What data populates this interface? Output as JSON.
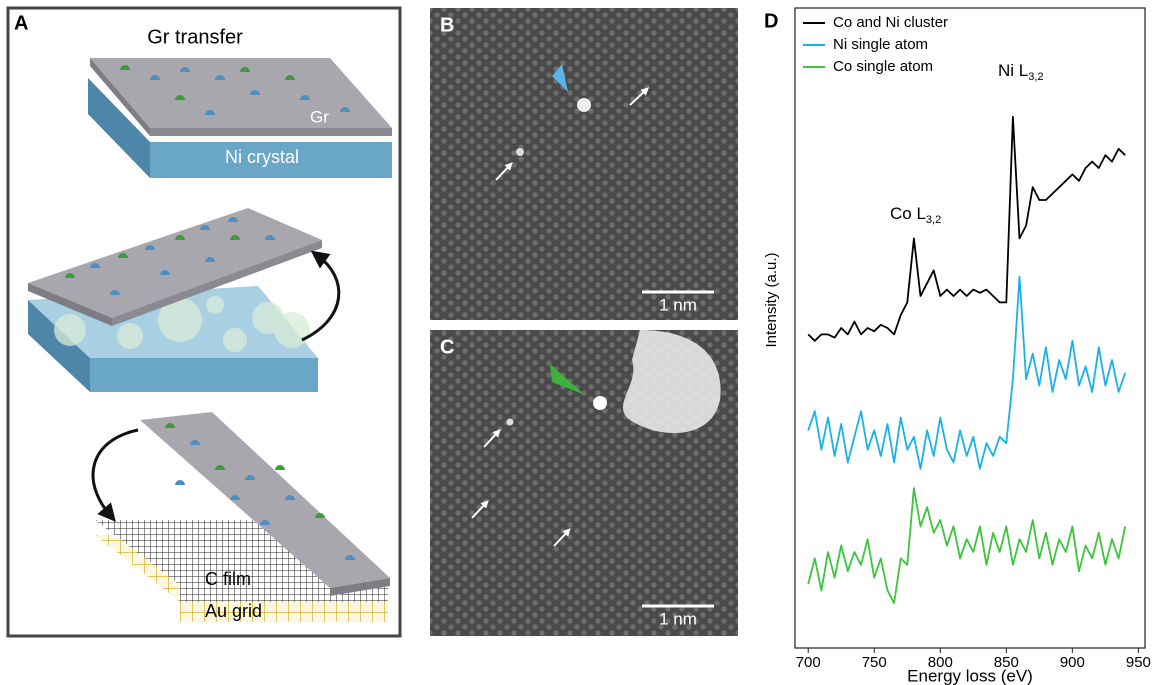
{
  "panels": {
    "A": {
      "label": "A",
      "title": "Gr transfer",
      "labels": [
        "Gr",
        "Ni crystal",
        "C film",
        "Au grid"
      ]
    },
    "B": {
      "label": "B",
      "scale_bar": "1 nm"
    },
    "C": {
      "label": "C",
      "scale_bar": "1 nm"
    }
  },
  "chart_data": {
    "type": "line",
    "panel_label": "D",
    "xlabel": "Energy loss (eV)",
    "ylabel": "Intensity (a.u.)",
    "xlim": [
      690,
      955
    ],
    "xticks": [
      700,
      750,
      800,
      850,
      900,
      950
    ],
    "ylim": [
      0,
      100
    ],
    "legend": "upper left",
    "annotations": [
      {
        "text": "Co L",
        "subscript": "3,2"
      },
      {
        "text": "Ni L",
        "subscript": "3,2"
      }
    ],
    "x": [
      700,
      705,
      710,
      715,
      720,
      725,
      730,
      735,
      740,
      745,
      750,
      755,
      760,
      765,
      770,
      775,
      780,
      785,
      790,
      795,
      800,
      805,
      810,
      815,
      820,
      825,
      830,
      835,
      840,
      845,
      850,
      855,
      860,
      865,
      870,
      875,
      880,
      885,
      890,
      895,
      900,
      905,
      910,
      915,
      920,
      925,
      930,
      935,
      940
    ],
    "series": [
      {
        "name": "Co and Ni cluster",
        "color": "#000000",
        "values": [
          49,
          48,
          49,
          49,
          48.5,
          50,
          49,
          51,
          49,
          50,
          49.5,
          50.5,
          50,
          49,
          52,
          54,
          64,
          55,
          57,
          59,
          55,
          56,
          55,
          56,
          55,
          56,
          55.5,
          56,
          55,
          54,
          54,
          83,
          64,
          66,
          72,
          70,
          70,
          71,
          72,
          73,
          74,
          73,
          75,
          76,
          75,
          77,
          76,
          78,
          77
        ]
      },
      {
        "name": "Ni single atom",
        "color": "#1ab0e8",
        "values": [
          34,
          37,
          31,
          36,
          30,
          35,
          29,
          33,
          37,
          31,
          34,
          30,
          35,
          29,
          36,
          31,
          33,
          28,
          34,
          30,
          36,
          31,
          29,
          34,
          30,
          33,
          28,
          32,
          30,
          33,
          32,
          42,
          58,
          42,
          46,
          41,
          47,
          40,
          45,
          42,
          48,
          41,
          44,
          40,
          47,
          41,
          45,
          40,
          43
        ]
      },
      {
        "name": "Co single atom",
        "color": "#3cc43c",
        "values": [
          10,
          14,
          9,
          15,
          11,
          16,
          12,
          15,
          13,
          17,
          11,
          14,
          9,
          7,
          14,
          13,
          25,
          19,
          22,
          18,
          20,
          16,
          19,
          14,
          17,
          15,
          19,
          13,
          18,
          15,
          19,
          13,
          17,
          15,
          20,
          14,
          18,
          13,
          17,
          15,
          19,
          12,
          16,
          14,
          18,
          13,
          17,
          14,
          19
        ]
      }
    ]
  }
}
